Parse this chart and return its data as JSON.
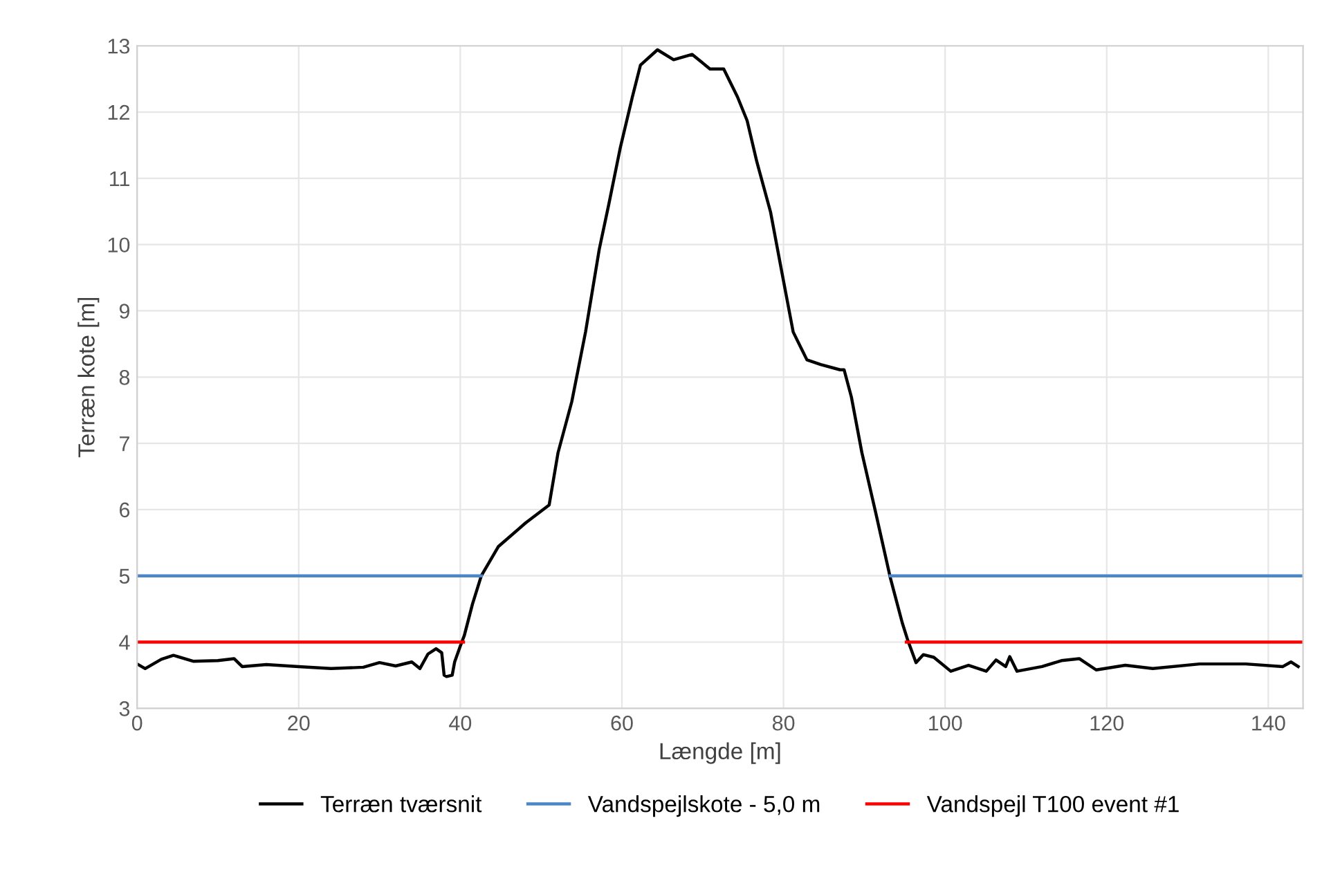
{
  "chart_data": {
    "type": "line",
    "xlabel": "Længde [m]",
    "ylabel": "Terræn kote [m]",
    "xlim": [
      0,
      144.3
    ],
    "xticks": [
      0,
      20,
      40,
      60,
      80,
      100,
      120,
      140
    ],
    "ylim": [
      3,
      13
    ],
    "yticks": [
      3,
      4,
      5,
      6,
      7,
      8,
      9,
      10,
      11,
      12,
      13
    ],
    "grid": true,
    "legend": "bottom",
    "marker": "none",
    "line_style": "solid",
    "series": [
      {
        "name": "Terræn tværsnit",
        "color": "#000000",
        "x": [
          0,
          1,
          3,
          4.5,
          7,
          10,
          12,
          13,
          16,
          20,
          24,
          28,
          30,
          32,
          34,
          35,
          36,
          37,
          37.7,
          38,
          38.3,
          39,
          39.3,
          40,
          40.5,
          41.5,
          42.6,
          44.7,
          48.1,
          51.0,
          52.1,
          53.8,
          55.5,
          57.2,
          58.4,
          59.8,
          61.3,
          62.3,
          64.4,
          66.4,
          68.7,
          70.9,
          72.6,
          74.3,
          75.5,
          76.7,
          78.4,
          79.8,
          81.2,
          82.9,
          84.6,
          87.0,
          87.5,
          88.4,
          89.7,
          91.4,
          93.2,
          94.7,
          95.4,
          96.4,
          97.3,
          98.6,
          100.7,
          102.9,
          105.1,
          106.3,
          107.5,
          108.0,
          108.9,
          112.0,
          114.4,
          116.6,
          118.7,
          122.3,
          125.7,
          131.5,
          137.2,
          141.8,
          142.8,
          143.7
        ],
        "values": [
          3.67,
          3.6,
          3.74,
          3.8,
          3.71,
          3.72,
          3.75,
          3.63,
          3.66,
          3.63,
          3.6,
          3.62,
          3.69,
          3.64,
          3.7,
          3.6,
          3.82,
          3.9,
          3.84,
          3.5,
          3.48,
          3.5,
          3.7,
          3.94,
          4.1,
          4.57,
          5.0,
          5.44,
          5.8,
          6.07,
          6.86,
          7.63,
          8.68,
          9.93,
          10.62,
          11.46,
          12.23,
          12.71,
          12.94,
          12.79,
          12.87,
          12.65,
          12.65,
          12.23,
          11.87,
          11.25,
          10.49,
          9.58,
          8.68,
          8.26,
          8.19,
          8.11,
          8.11,
          7.7,
          6.86,
          5.96,
          4.98,
          4.29,
          4.02,
          3.69,
          3.81,
          3.77,
          3.56,
          3.65,
          3.56,
          3.73,
          3.63,
          3.78,
          3.56,
          3.63,
          3.72,
          3.75,
          3.58,
          3.65,
          3.6,
          3.67,
          3.67,
          3.63,
          3.7,
          3.63
        ]
      },
      {
        "name": "Vandspejlskote - 5,0 m",
        "color": "#4a86c8",
        "x": [
          0,
          42.6,
          null,
          93.2,
          144.3
        ],
        "values": [
          5,
          5,
          null,
          5,
          5
        ]
      },
      {
        "name": "Vandspejl T100 event #1",
        "color": "#ff0000",
        "x": [
          0,
          40.4,
          null,
          95.2,
          144.3
        ],
        "values": [
          4,
          4,
          null,
          4,
          4
        ]
      }
    ]
  }
}
